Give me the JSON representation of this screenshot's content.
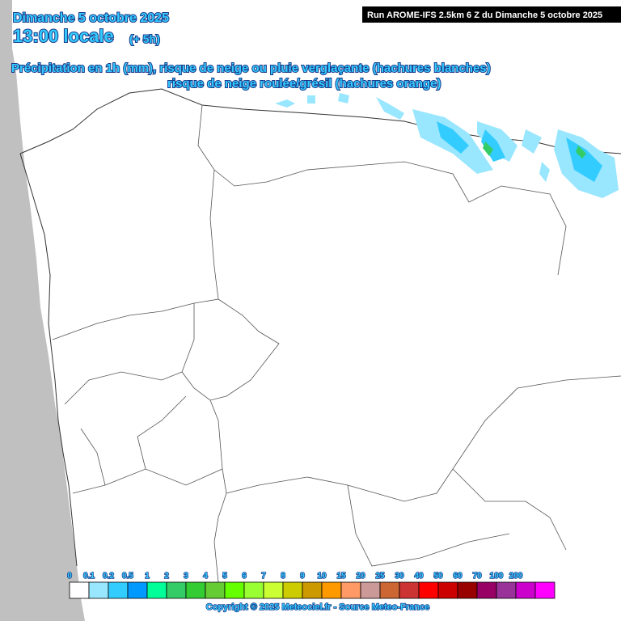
{
  "header": {
    "date": "Dimanche 5 octobre 2025",
    "time": "13:00 locale",
    "offset": "(+ 5h)",
    "run": "Run AROME-IFS 2.5km 6 Z du Dimanche 5 octobre 2025",
    "subtitle_1": "Précipitation en 1h (mm), risque de neige ou pluie verglaçante (hachures blanches)",
    "subtitle_2": "risque de neige roulée/grésil (hachures orange)"
  },
  "legend": {
    "labels": [
      "0",
      "0.1",
      "0.2",
      "0.5",
      "1",
      "2",
      "3",
      "4",
      "5",
      "6",
      "7",
      "8",
      "9",
      "10",
      "15",
      "20",
      "25",
      "30",
      "40",
      "50",
      "60",
      "70",
      "100",
      "200"
    ],
    "colors": [
      "#ffffff",
      "#99e6ff",
      "#33ccff",
      "#0099ff",
      "#00ff99",
      "#33cc66",
      "#33cc33",
      "#66cc33",
      "#66ff00",
      "#99ff33",
      "#ccff33",
      "#cccc00",
      "#cc9900",
      "#ff9900",
      "#ff9966",
      "#cc9999",
      "#cc6633",
      "#cc3333",
      "#ff0000",
      "#cc0000",
      "#990000",
      "#990066",
      "#993399",
      "#cc00cc",
      "#ff00ff"
    ]
  },
  "footer": {
    "copyright": "Copyright © 2025 Meteociel.fr - Source Meteo-France"
  }
}
